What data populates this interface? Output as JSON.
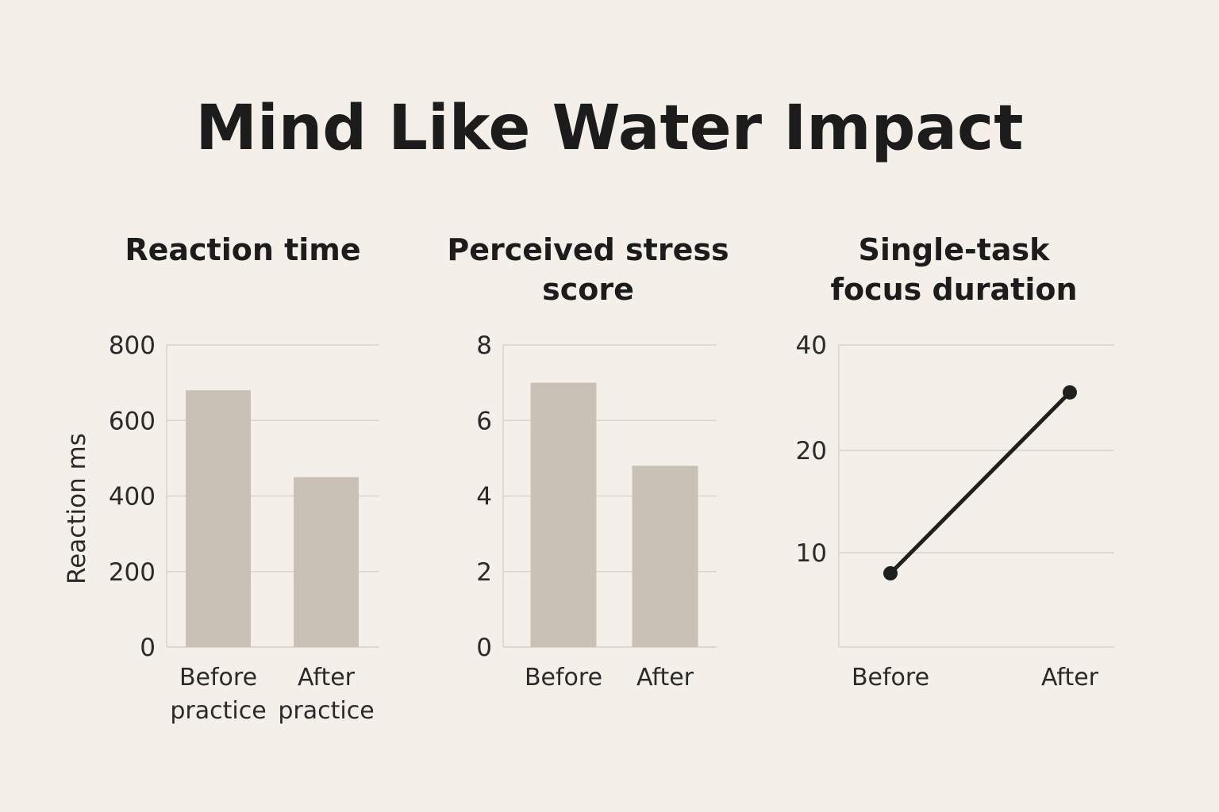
{
  "title": "Mind Like Water Impact",
  "colors": {
    "background": "#f4efe9",
    "bar": "#cac1b6",
    "gridline": "#d9d3cc",
    "line": "#1f1f1f",
    "text": "#1c1c1c"
  },
  "chart_data": [
    {
      "type": "bar",
      "title": [
        "Reaction time"
      ],
      "ylabel": "Reaction ms",
      "xlabel": "",
      "categories": [
        [
          "Before",
          "practice"
        ],
        [
          "After",
          "practice"
        ]
      ],
      "values": [
        680,
        450
      ],
      "ylim": [
        0,
        800
      ],
      "yticks": [
        0,
        200,
        400,
        600,
        800
      ],
      "grid": true
    },
    {
      "type": "bar",
      "title": [
        "Perceived stress",
        "score"
      ],
      "ylabel": "",
      "xlabel": "",
      "categories": [
        [
          "Before"
        ],
        [
          "After"
        ]
      ],
      "values": [
        7,
        4.8
      ],
      "ylim": [
        0,
        8
      ],
      "yticks": [
        0,
        2,
        4,
        6,
        8
      ],
      "grid": true
    },
    {
      "type": "line",
      "title": [
        "Single-task",
        "focus duration"
      ],
      "ylabel": "",
      "xlabel": "",
      "categories": [
        [
          "Before"
        ],
        [
          "After"
        ]
      ],
      "values": [
        8,
        31
      ],
      "yticks": [
        10,
        20,
        40
      ],
      "grid": true
    }
  ]
}
